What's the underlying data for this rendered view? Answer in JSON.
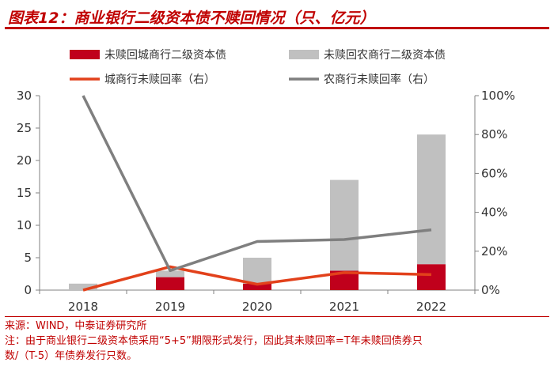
{
  "title": "图表12：商业银行二级资本债不赎回情况（只、亿元）",
  "source": "来源：WIND，中泰证券研究所",
  "note_line1": "注：由于商业银行二级资本债采用“5+5”期限形式发行，因此其未赎回率=T年未赎回债券只",
  "note_line2": "数/（T-5）年债券发行只数。",
  "chart_data": {
    "type": "bar",
    "categories": [
      "2018",
      "2019",
      "2020",
      "2021",
      "2022"
    ],
    "series": [
      {
        "name": "未赎回城商行二级资本债",
        "type": "bar",
        "axis": "left",
        "color": "#c0001c",
        "values": [
          0,
          2,
          1,
          3,
          4
        ]
      },
      {
        "name": "未赎回农商行二级资本债",
        "type": "bar",
        "axis": "left",
        "color": "#c0c0c0",
        "values": [
          1,
          1,
          4,
          14,
          20
        ]
      },
      {
        "name": "城商行未赎回率（右）",
        "type": "line",
        "axis": "right",
        "color": "#e2411b",
        "values": [
          0,
          12,
          3,
          9,
          8
        ]
      },
      {
        "name": "农商行未赎回率（右）",
        "type": "line",
        "axis": "right",
        "color": "#7f7f7f",
        "values": [
          100,
          10,
          25,
          26,
          31
        ]
      }
    ],
    "stacked": true,
    "ylim": [
      0,
      30
    ],
    "yticks": [
      "0",
      "5",
      "10",
      "15",
      "20",
      "25",
      "30"
    ],
    "y2lim": [
      0,
      100
    ],
    "y2ticks": [
      "0%",
      "20%",
      "40%",
      "60%",
      "80%",
      "100%"
    ],
    "legend_position": "top",
    "grid": false
  }
}
